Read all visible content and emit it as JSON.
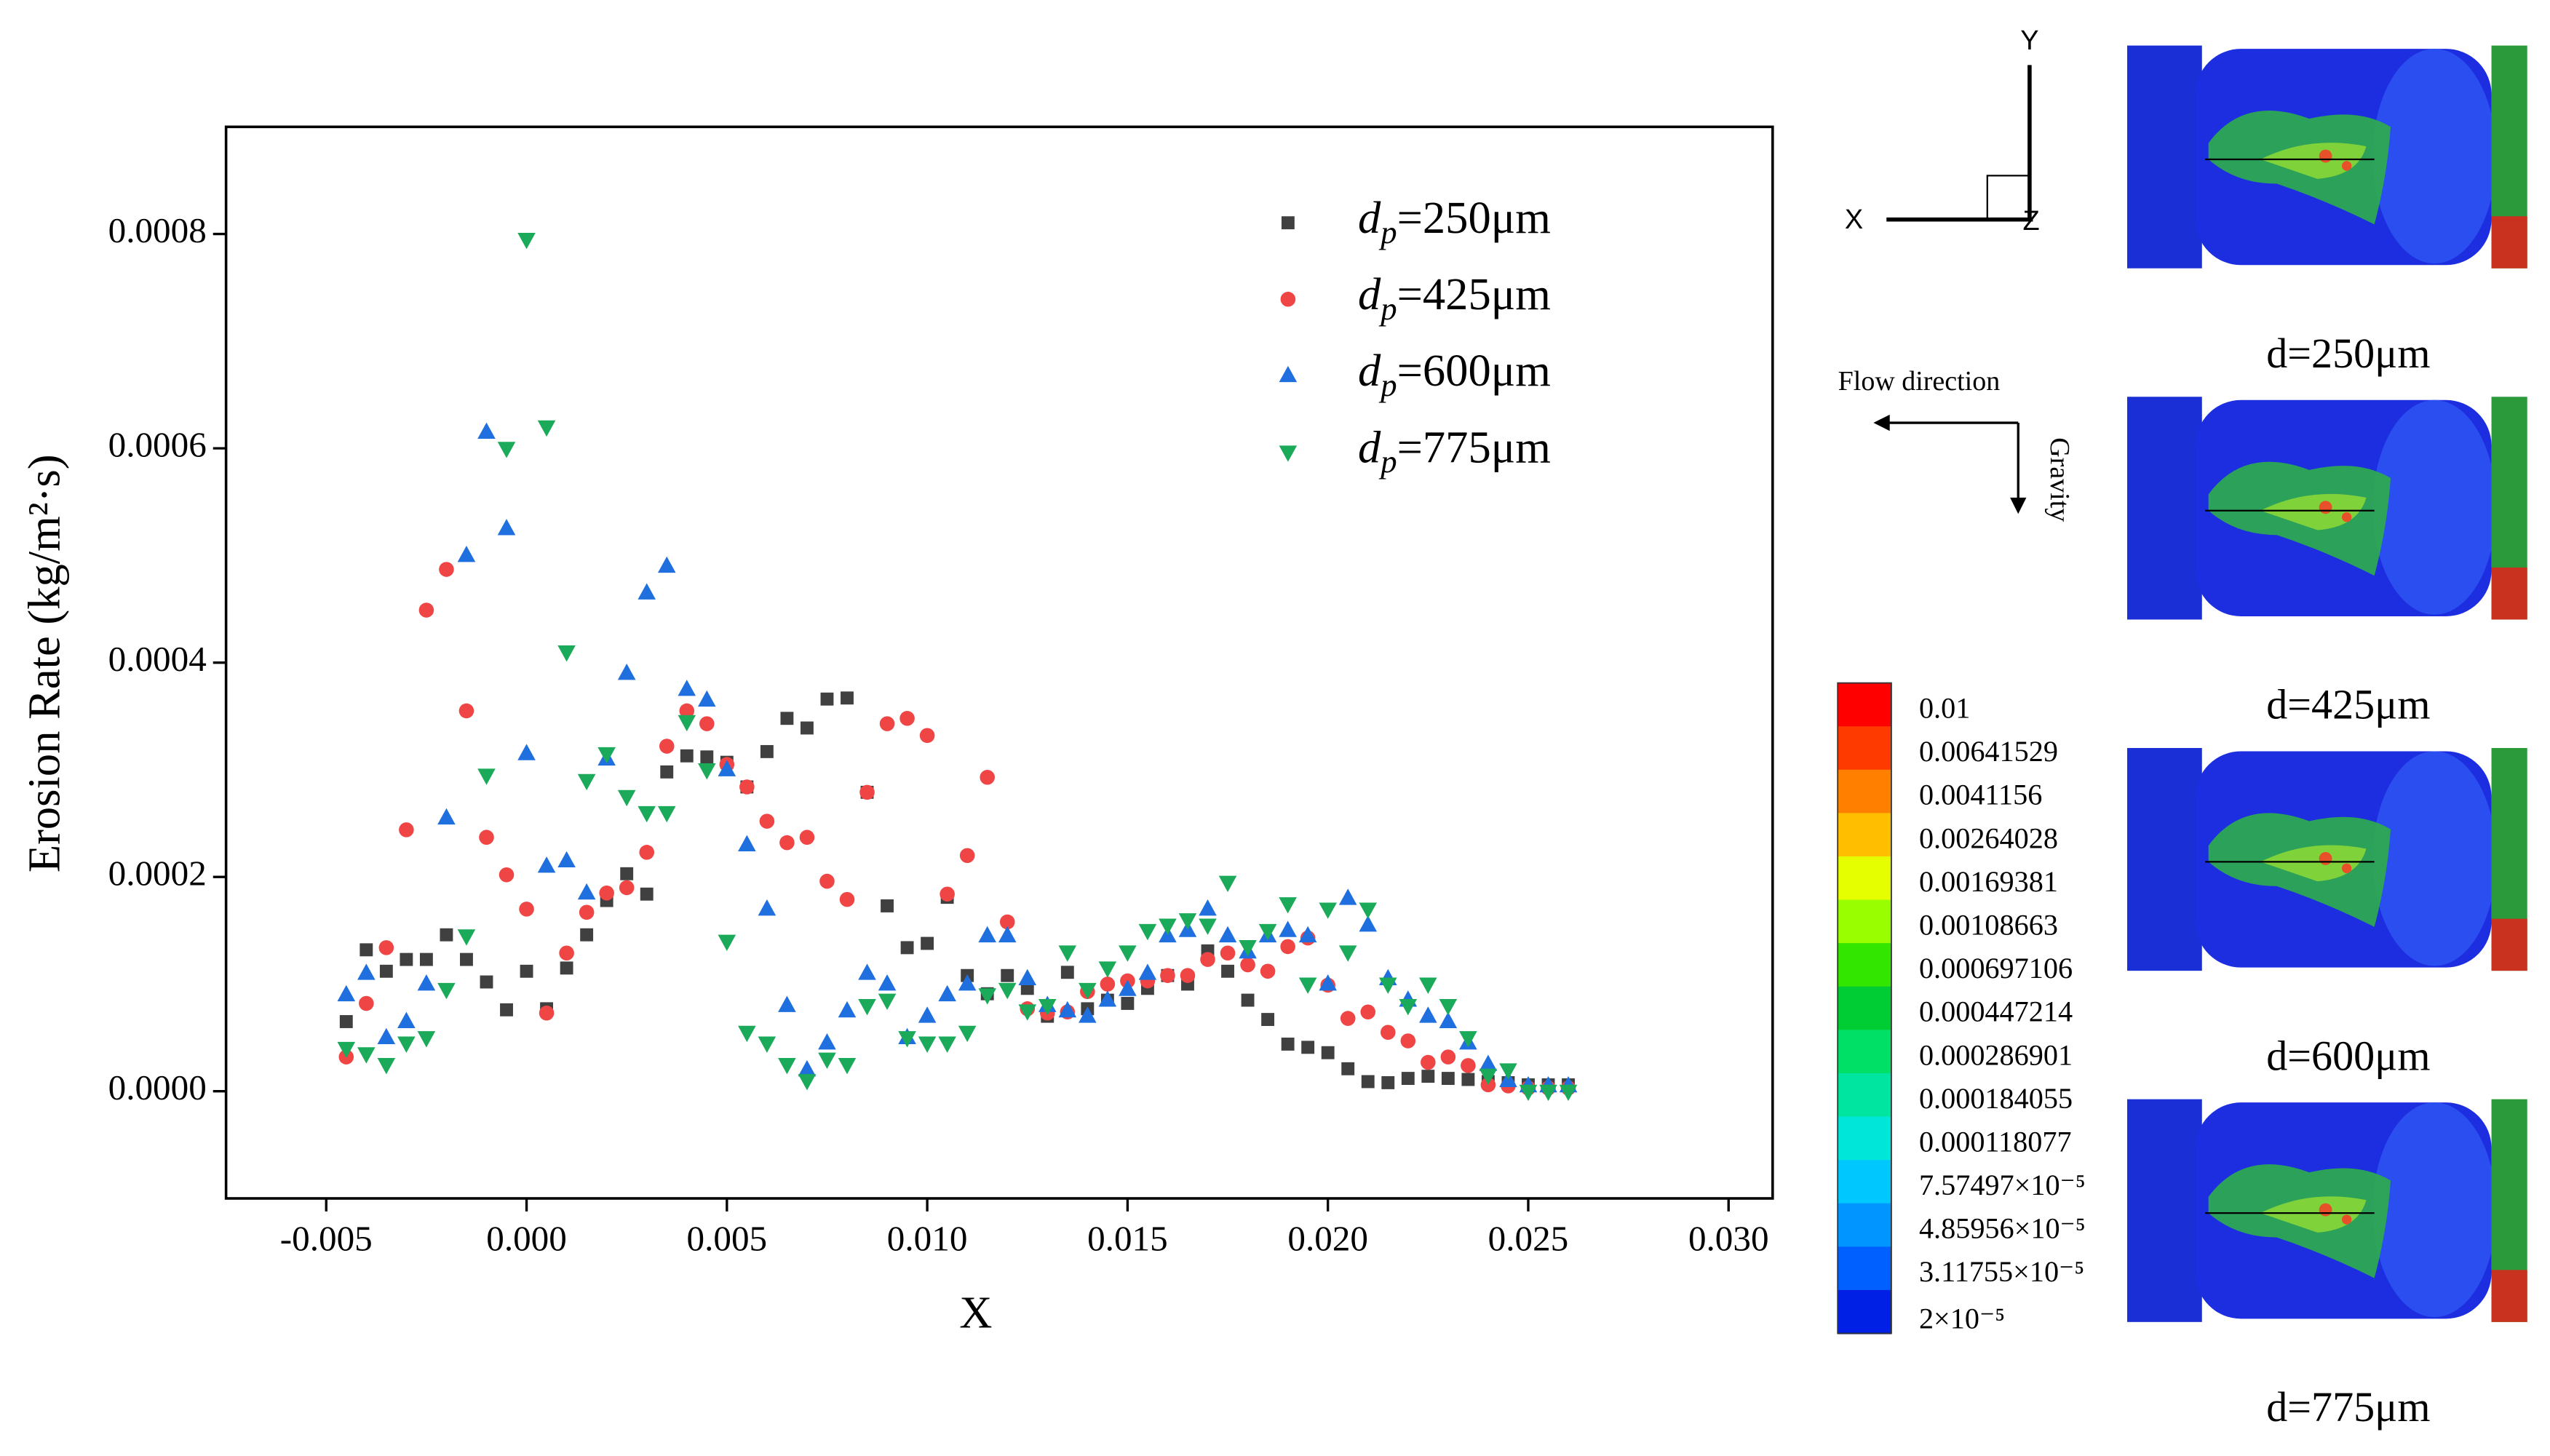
{
  "chart_data": {
    "type": "scatter",
    "xlabel": "X",
    "ylabel": "Erosion Rate (kg/m²·s)",
    "x": [
      -0.0045,
      -0.004,
      -0.0035,
      -0.003,
      -0.0025,
      -0.002,
      -0.0015,
      -0.001,
      -0.0005,
      0,
      0.0005,
      0.001,
      0.0015,
      0.002,
      0.0025,
      0.003,
      0.0035,
      0.004,
      0.0045,
      0.005,
      0.0055,
      0.006,
      0.0065,
      0.007,
      0.0075,
      0.008,
      0.0085,
      0.009,
      0.0095,
      0.01,
      0.0105,
      0.011,
      0.0115,
      0.012,
      0.0125,
      0.013,
      0.0135,
      0.014,
      0.0145,
      0.015,
      0.0155,
      0.016,
      0.0165,
      0.017,
      0.0175,
      0.018,
      0.0185,
      0.019,
      0.0195,
      0.02,
      0.0205,
      0.021,
      0.0215,
      0.022,
      0.0225,
      0.023,
      0.0235,
      0.024,
      0.0245,
      0.025,
      0.0255,
      0.026
    ],
    "series": [
      {
        "name": "dp=250μm",
        "color": "#404040",
        "marker": "square",
        "values": [
          6.5e-05,
          0.000132,
          0.000112,
          0.000123,
          0.000123,
          0.000146,
          0.000123,
          0.000102,
          7.6e-05,
          0.000112,
          7.7e-05,
          0.000115,
          0.000146,
          0.000178,
          0.000203,
          0.000184,
          0.000298,
          0.000313,
          0.000312,
          0.000307,
          0.000284,
          0.000317,
          0.000348,
          0.000339,
          0.000366,
          0.000367,
          0.000279,
          0.000173,
          0.000134,
          0.000138,
          0.000181,
          0.000108,
          9.1e-05,
          0.000108,
          9.6e-05,
          7e-05,
          0.000111,
          7.7e-05,
          8.5e-05,
          8.2e-05,
          9.6e-05,
          0.000108,
          0.0001,
          0.000131,
          0.000112,
          8.5e-05,
          6.7e-05,
          4.4e-05,
          4.1e-05,
          3.6e-05,
          2.1e-05,
          9e-06,
          8e-06,
          1.2e-05,
          1.4e-05,
          1.2e-05,
          1.1e-05,
          9e-06,
          8e-06,
          6e-06,
          6e-06,
          6e-06
        ]
      },
      {
        "name": "dp=425μm",
        "color": "#f04545",
        "marker": "circle",
        "values": [
          3.2e-05,
          8.2e-05,
          0.000134,
          0.000244,
          0.000449,
          0.000487,
          0.000355,
          0.000237,
          0.000202,
          0.00017,
          7.3e-05,
          0.000129,
          0.000167,
          0.000185,
          0.00019,
          0.000223,
          0.000322,
          0.000355,
          0.000343,
          0.000305,
          0.000284,
          0.000252,
          0.000232,
          0.000237,
          0.000196,
          0.000179,
          0.000279,
          0.000343,
          0.000348,
          0.000332,
          0.000184,
          0.00022,
          0.000293,
          0.000158,
          7.7e-05,
          7.3e-05,
          7.4e-05,
          9.3e-05,
          0.0001,
          0.000103,
          0.000103,
          0.000108,
          0.000108,
          0.000123,
          0.000129,
          0.000118,
          0.000112,
          0.000135,
          0.000143,
          9.9e-05,
          6.8e-05,
          7.4e-05,
          5.5e-05,
          4.7e-05,
          2.7e-05,
          3.2e-05,
          2.4e-05,
          6e-06,
          5e-06,
          3e-06,
          3e-06,
          3e-06
        ]
      },
      {
        "name": "dp=600μm",
        "color": "#1f6fdf",
        "marker": "triangle-up",
        "values": [
          9e-05,
          0.00011,
          5e-05,
          6.5e-05,
          0.0001,
          0.000255,
          0.0005,
          0.000615,
          0.000525,
          0.000315,
          0.00021,
          0.000215,
          0.000185,
          0.00031,
          0.00039,
          0.000465,
          0.00049,
          0.000375,
          0.000365,
          0.0003,
          0.00023,
          0.00017,
          8e-05,
          2e-05,
          4.5e-05,
          7.5e-05,
          0.00011,
          0.0001,
          5e-05,
          7e-05,
          9e-05,
          0.0001,
          0.000145,
          0.000145,
          0.000105,
          8e-05,
          7.5e-05,
          7e-05,
          8.5e-05,
          9.5e-05,
          0.00011,
          0.000145,
          0.00015,
          0.00017,
          0.000145,
          0.00013,
          0.000145,
          0.00015,
          0.000145,
          0.0001,
          0.00018,
          0.000155,
          0.000105,
          8.5e-05,
          7e-05,
          6.5e-05,
          4.5e-05,
          2.5e-05,
          1e-05,
          5e-06,
          5e-06,
          5e-06
        ]
      },
      {
        "name": "dp=775μm",
        "color": "#1aaa5a",
        "marker": "triangle-down",
        "values": [
          4e-05,
          3.5e-05,
          2.5e-05,
          4.5e-05,
          5e-05,
          9.5e-05,
          0.000145,
          0.000295,
          0.0006,
          0.000795,
          0.00062,
          0.00041,
          0.00029,
          0.000315,
          0.000275,
          0.00026,
          0.00026,
          0.000345,
          0.0003,
          0.00014,
          5.5e-05,
          4.5e-05,
          2.5e-05,
          1e-05,
          3e-05,
          2.5e-05,
          8e-05,
          8.5e-05,
          5e-05,
          4.5e-05,
          4.5e-05,
          5.5e-05,
          9e-05,
          9.5e-05,
          7.5e-05,
          8e-05,
          0.00013,
          9.5e-05,
          0.000115,
          0.00013,
          0.00015,
          0.000155,
          0.00016,
          0.000155,
          0.000195,
          0.000135,
          0.00015,
          0.000175,
          0.0001,
          0.00017,
          0.00013,
          0.00017,
          0.0001,
          8e-05,
          0.0001,
          8e-05,
          5e-05,
          1.5e-05,
          2e-05,
          0,
          0,
          0
        ]
      }
    ],
    "xlim": [
      -0.0075,
      0.0311
    ],
    "ylim": [
      -0.0001,
      0.0009
    ],
    "xticks": [
      -0.005,
      {
        "value": 0,
        "label": "0.000"
      },
      0.005,
      {
        "value": 0.01,
        "label": "0.010"
      },
      0.015,
      {
        "value": 0.02,
        "label": "0.020"
      },
      0.025,
      {
        "value": 0.03,
        "label": "0.030"
      }
    ],
    "yticks": [
      {
        "value": 0,
        "label": "0.0000"
      },
      0.0002,
      0.0004,
      0.0006,
      0.0008
    ],
    "legend": "upper right"
  },
  "panel": {
    "axes": {
      "y": "Y",
      "x": "X",
      "z": "Z"
    },
    "flow_direction": "Flow direction",
    "gravity": "Gravity",
    "colorbar": {
      "labels": [
        "0.01",
        "0.00641529",
        "0.0041156",
        "0.00264028",
        "0.00169381",
        "0.00108663",
        "0.000697106",
        "0.000447214",
        "0.000286901",
        "0.000184055",
        "0.000118077",
        "7.57497×10⁻⁵",
        "4.85956×10⁻⁵",
        "3.11755×10⁻⁵",
        "2×10⁻⁵"
      ],
      "colors": [
        "#ff0000",
        "#ff3a00",
        "#ff8000",
        "#ffbf00",
        "#e6ff00",
        "#99ff00",
        "#33e600",
        "#00cc33",
        "#00e066",
        "#00e6a0",
        "#00e6d9",
        "#00c8ff",
        "#0095ff",
        "#0060ff",
        "#0020e6"
      ]
    },
    "captions": [
      "d=250μm",
      "d=425μm",
      "d=600μm",
      "d=775μm"
    ]
  }
}
